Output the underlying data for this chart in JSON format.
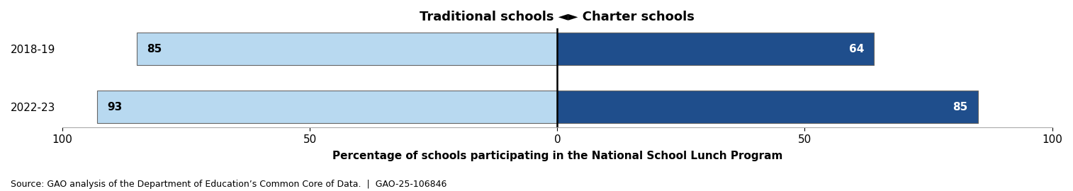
{
  "years": [
    "2018-19",
    "2022-23"
  ],
  "traditional_values": [
    85,
    93
  ],
  "charter_values": [
    64,
    85
  ],
  "traditional_color": "#b8d9f0",
  "charter_color": "#1f4e8c",
  "bar_edge_color": "#666666",
  "title": "Traditional schools ◄► Charter schools",
  "xlabel": "Percentage of schools participating in the National School Lunch Program",
  "source": "Source: GAO analysis of the Department of Education’s Common Core of Data.  |  GAO-25-106846",
  "xlim": [
    -100,
    100
  ],
  "xticks": [
    -100,
    -50,
    0,
    50,
    100
  ],
  "xticklabels": [
    "100",
    "50",
    "0",
    "50",
    "100"
  ],
  "background_color": "#ffffff",
  "title_fontsize": 13,
  "label_fontsize": 11,
  "tick_fontsize": 11,
  "source_fontsize": 9,
  "bar_height": 0.55
}
